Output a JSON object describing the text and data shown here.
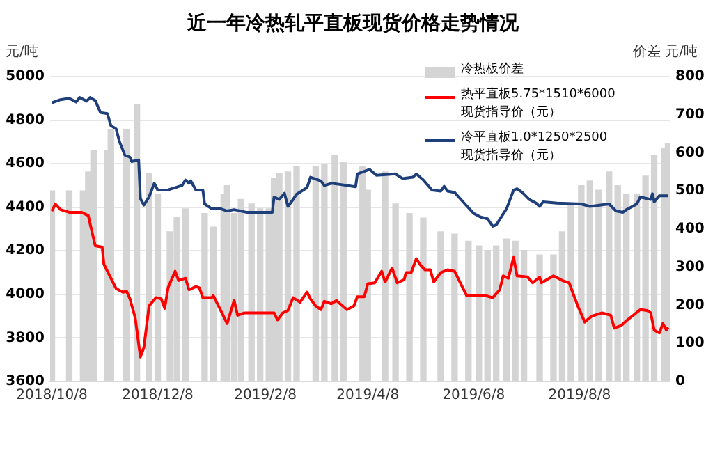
{
  "chart_data": {
    "type": "line",
    "title": "近一年冷热轧平直板现货价格走势情况",
    "ylabel": "元/吨",
    "y2label": "价差  元/吨",
    "xlim": [
      "2018-10-07",
      "2019-09-29"
    ],
    "xticks": [
      {
        "value": "2018-10-08",
        "label": "2018/10/8"
      },
      {
        "value": "2018-12-08",
        "label": "2018/12/8"
      },
      {
        "value": "2019-02-08",
        "label": "2019/2/8"
      },
      {
        "value": "2019-04-08",
        "label": "2019/4/8"
      },
      {
        "value": "2019-06-08",
        "label": "2019/6/8"
      },
      {
        "value": "2019-08-08",
        "label": "2019/8/8"
      }
    ],
    "ylim": [
      3600,
      5000
    ],
    "yticks": [
      3600,
      3800,
      4000,
      4200,
      4400,
      4600,
      4800,
      5000
    ],
    "y2lim": [
      0,
      800
    ],
    "y2ticks": [
      0,
      100,
      200,
      300,
      400,
      500,
      600,
      700,
      800
    ],
    "grid": "y",
    "legend": "top right",
    "series": [
      {
        "name": "冷热板价差",
        "type": "bar",
        "axis": "y2",
        "color": "#d4d4d4",
        "x": [
          "2018-10-08",
          "2018-10-18",
          "2018-10-26",
          "2018-10-29",
          "2018-11-01",
          "2018-11-09",
          "2018-11-11",
          "2018-11-20",
          "2018-11-26",
          "2018-12-03",
          "2018-12-08",
          "2018-12-15",
          "2018-12-19",
          "2018-12-24",
          "2019-01-04",
          "2019-01-09",
          "2019-01-15",
          "2019-01-17",
          "2019-01-21",
          "2019-01-25",
          "2019-01-31",
          "2019-02-05",
          "2019-02-10",
          "2019-02-13",
          "2019-02-16",
          "2019-02-21",
          "2019-02-26",
          "2019-03-09",
          "2019-03-14",
          "2019-03-20",
          "2019-03-25",
          "2019-04-05",
          "2019-04-08",
          "2019-04-18",
          "2019-04-24",
          "2019-05-02",
          "2019-05-10",
          "2019-05-20",
          "2019-05-28",
          "2019-06-05",
          "2019-06-11",
          "2019-06-16",
          "2019-06-21",
          "2019-06-27",
          "2019-07-02",
          "2019-07-07",
          "2019-07-16",
          "2019-07-24",
          "2019-07-29",
          "2019-08-03",
          "2019-08-09",
          "2019-08-14",
          "2019-08-19",
          "2019-08-25",
          "2019-08-30",
          "2019-09-04",
          "2019-09-10",
          "2019-09-15",
          "2019-09-20",
          "2019-09-26",
          "2019-09-28"
        ],
        "values": [
          500,
          500,
          500,
          550,
          605,
          605,
          660,
          660,
          727,
          545,
          490,
          393,
          430,
          453,
          441,
          405,
          490,
          514,
          441,
          478,
          466,
          453,
          453,
          533,
          545,
          550,
          563,
          563,
          569,
          593,
          575,
          563,
          502,
          550,
          466,
          441,
          429,
          393,
          387,
          368,
          356,
          344,
          356,
          374,
          368,
          344,
          332,
          332,
          393,
          466,
          514,
          526,
          502,
          550,
          514,
          490,
          490,
          539,
          593,
          612,
          624
        ]
      },
      {
        "name": "热平直板5.75*1510*6000\n现货指导价（元）",
        "color": "#ff0000",
        "x": [
          "2018-10-08",
          "2018-10-10",
          "2018-10-13",
          "2018-10-18",
          "2018-10-25",
          "2018-10-29",
          "2018-10-30",
          "2018-11-02",
          "2018-11-06",
          "2018-11-07",
          "2018-11-11",
          "2018-11-14",
          "2018-11-18",
          "2018-11-20",
          "2018-11-22",
          "2018-11-25",
          "2018-11-28",
          "2018-11-30",
          "2018-12-03",
          "2018-12-04",
          "2018-12-07",
          "2018-12-10",
          "2018-12-12",
          "2018-12-14",
          "2018-12-18",
          "2018-12-20",
          "2018-12-24",
          "2018-12-26",
          "2018-12-30",
          "2019-01-01",
          "2019-01-03",
          "2019-01-08",
          "2019-01-09",
          "2019-01-12",
          "2019-01-17",
          "2019-01-21",
          "2019-01-23",
          "2019-01-27",
          "2019-02-13",
          "2019-02-15",
          "2019-02-18",
          "2019-02-21",
          "2019-02-24",
          "2019-02-28",
          "2019-03-04",
          "2019-03-06",
          "2019-03-09",
          "2019-03-12",
          "2019-03-14",
          "2019-03-18",
          "2019-03-21",
          "2019-03-23",
          "2019-03-27",
          "2019-03-31",
          "2019-04-02",
          "2019-04-06",
          "2019-04-08",
          "2019-04-12",
          "2019-04-16",
          "2019-04-18",
          "2019-04-22",
          "2019-04-25",
          "2019-04-29",
          "2019-04-30",
          "2019-05-03",
          "2019-05-06",
          "2019-05-08",
          "2019-05-11",
          "2019-05-14",
          "2019-05-16",
          "2019-05-20",
          "2019-05-24",
          "2019-05-28",
          "2019-06-04",
          "2019-06-15",
          "2019-06-19",
          "2019-06-23",
          "2019-06-25",
          "2019-06-28",
          "2019-07-01",
          "2019-07-03",
          "2019-07-09",
          "2019-07-12",
          "2019-07-16",
          "2019-07-17",
          "2019-07-24",
          "2019-07-29",
          "2019-08-02",
          "2019-08-07",
          "2019-08-11",
          "2019-08-15",
          "2019-08-21",
          "2019-08-26",
          "2019-08-28",
          "2019-09-01",
          "2019-09-04",
          "2019-09-12",
          "2019-09-16",
          "2019-09-18",
          "2019-09-20",
          "2019-09-23",
          "2019-09-25",
          "2019-09-27",
          "2019-09-28"
        ],
        "values": [
          4383,
          4415,
          4389,
          4377,
          4377,
          4362,
          4325,
          4223,
          4217,
          4138,
          4074,
          4027,
          4010,
          4015,
          3979,
          3893,
          3713,
          3755,
          3947,
          3957,
          3985,
          3980,
          3936,
          4032,
          4106,
          4064,
          4074,
          4021,
          4036,
          4030,
          3985,
          3985,
          3994,
          3947,
          3866,
          3972,
          3904,
          3915,
          3915,
          3883,
          3915,
          3926,
          3985,
          3964,
          4010,
          3979,
          3947,
          3930,
          3968,
          3957,
          3972,
          3957,
          3930,
          3947,
          3989,
          3989,
          4049,
          4053,
          4106,
          4057,
          4121,
          4053,
          4068,
          4100,
          4100,
          4164,
          4138,
          4113,
          4113,
          4057,
          4100,
          4113,
          4106,
          3994,
          3994,
          3985,
          4021,
          4085,
          4074,
          4170,
          4085,
          4080,
          4053,
          4079,
          4053,
          4085,
          4064,
          4053,
          3947,
          3873,
          3900,
          3915,
          3904,
          3845,
          3857,
          3879,
          3930,
          3926,
          3915,
          3836,
          3823,
          3866,
          3836,
          3849
        ]
      },
      {
        "name": "冷平直板1.0*1250*2500\n现货指导价（元）",
        "color": "#1f3f7a",
        "x": [
          "2018-10-08",
          "2018-10-13",
          "2018-10-18",
          "2018-10-22",
          "2018-10-24",
          "2018-10-28",
          "2018-10-30",
          "2018-11-02",
          "2018-11-05",
          "2018-11-09",
          "2018-11-11",
          "2018-11-14",
          "2018-11-16",
          "2018-11-19",
          "2018-11-22",
          "2018-11-23",
          "2018-11-27",
          "2018-11-28",
          "2018-11-30",
          "2018-12-03",
          "2018-12-06",
          "2018-12-08",
          "2018-12-14",
          "2018-12-18",
          "2018-12-22",
          "2018-12-24",
          "2018-12-26",
          "2018-12-27",
          "2018-12-30",
          "2019-01-03",
          "2019-01-04",
          "2019-01-08",
          "2019-01-13",
          "2019-01-17",
          "2019-01-21",
          "2019-01-28",
          "2019-02-12",
          "2019-02-13",
          "2019-02-16",
          "2019-02-19",
          "2019-02-21",
          "2019-02-24",
          "2019-02-26",
          "2019-03-04",
          "2019-03-06",
          "2019-03-12",
          "2019-03-14",
          "2019-03-18",
          "2019-03-23",
          "2019-04-01",
          "2019-04-02",
          "2019-04-09",
          "2019-04-13",
          "2019-04-24",
          "2019-04-28",
          "2019-05-04",
          "2019-05-06",
          "2019-05-10",
          "2019-05-15",
          "2019-05-20",
          "2019-05-22",
          "2019-05-24",
          "2019-05-28",
          "2019-06-03",
          "2019-06-08",
          "2019-06-12",
          "2019-06-16",
          "2019-06-19",
          "2019-06-21",
          "2019-06-27",
          "2019-07-01",
          "2019-07-03",
          "2019-07-06",
          "2019-07-10",
          "2019-07-14",
          "2019-07-16",
          "2019-07-18",
          "2019-07-26",
          "2019-08-09",
          "2019-08-14",
          "2019-08-25",
          "2019-08-29",
          "2019-09-02",
          "2019-09-04",
          "2019-09-10",
          "2019-09-12",
          "2019-09-18",
          "2019-09-19",
          "2019-09-20",
          "2019-09-23",
          "2019-09-28"
        ],
        "values": [
          4880,
          4894,
          4900,
          4883,
          4904,
          4887,
          4904,
          4890,
          4835,
          4830,
          4775,
          4760,
          4700,
          4640,
          4630,
          4610,
          4617,
          4440,
          4410,
          4447,
          4510,
          4479,
          4480,
          4490,
          4500,
          4525,
          4510,
          4521,
          4479,
          4479,
          4415,
          4394,
          4394,
          4383,
          4389,
          4377,
          4377,
          4447,
          4436,
          4464,
          4404,
          4436,
          4460,
          4490,
          4538,
          4521,
          4500,
          4510,
          4505,
          4494,
          4553,
          4574,
          4547,
          4553,
          4532,
          4538,
          4553,
          4525,
          4479,
          4474,
          4496,
          4474,
          4468,
          4415,
          4372,
          4355,
          4347,
          4313,
          4319,
          4394,
          4479,
          4485,
          4468,
          4436,
          4419,
          4404,
          4425,
          4419,
          4415,
          4404,
          4415,
          4383,
          4377,
          4389,
          4415,
          4447,
          4436,
          4462,
          4425,
          4453,
          4453
        ]
      }
    ]
  }
}
